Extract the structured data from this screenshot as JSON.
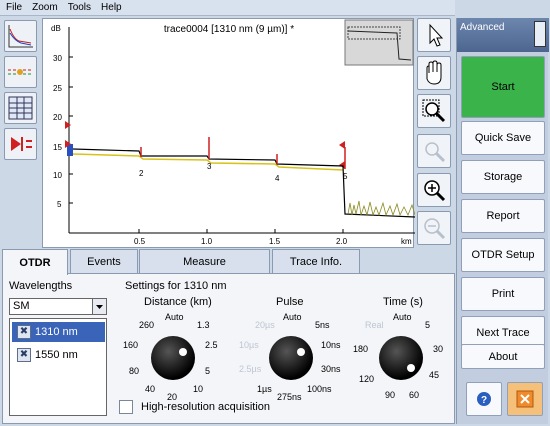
{
  "menu": [
    "File",
    "Zoom",
    "Tools",
    "Help"
  ],
  "graph": {
    "title": "trace0004 [1310 nm (9 µm)] *",
    "y_unit": "dB",
    "y_ticks": [
      "30",
      "25",
      "20",
      "15",
      "10",
      "5"
    ],
    "x_ticks": [
      "0.5",
      "1.0",
      "1.5",
      "2.0"
    ],
    "x_unit": "km",
    "event_labels": [
      "2",
      "3",
      "4",
      "5"
    ]
  },
  "right_panel": {
    "mode": "Advanced",
    "buttons": [
      "Start",
      "Quick Save",
      "Storage",
      "Report",
      "OTDR Setup",
      "Print",
      "Next Trace",
      "About"
    ],
    "colors": {
      "start": "#3ab34a",
      "close": "#f08a2a",
      "help": "#2a5fc0"
    }
  },
  "tabs": [
    "OTDR",
    "Events",
    "Measure",
    "Trace Info."
  ],
  "otdr": {
    "wavelengths_label": "Wavelengths",
    "fiber_select": "SM",
    "wavelengths": [
      "1310 nm",
      "1550 nm"
    ],
    "settings_title": "Settings for 1310 nm",
    "distance": {
      "label": "Distance (km)",
      "ticks": [
        "Auto",
        "1.3",
        "2.5",
        "5",
        "10",
        "20",
        "40",
        "80",
        "160",
        "260"
      ]
    },
    "pulse": {
      "label": "Pulse",
      "ticks": [
        "Auto",
        "5ns",
        "10ns",
        "30ns",
        "100ns",
        "275ns",
        "1µs",
        "2.5µs",
        "10µs",
        "20µs"
      ]
    },
    "time": {
      "label": "Time (s)",
      "ticks": [
        "Auto",
        "5",
        "30",
        "45",
        "60",
        "90",
        "120",
        "180",
        "Real"
      ]
    },
    "high_res_label": "High-resolution acquisition"
  }
}
